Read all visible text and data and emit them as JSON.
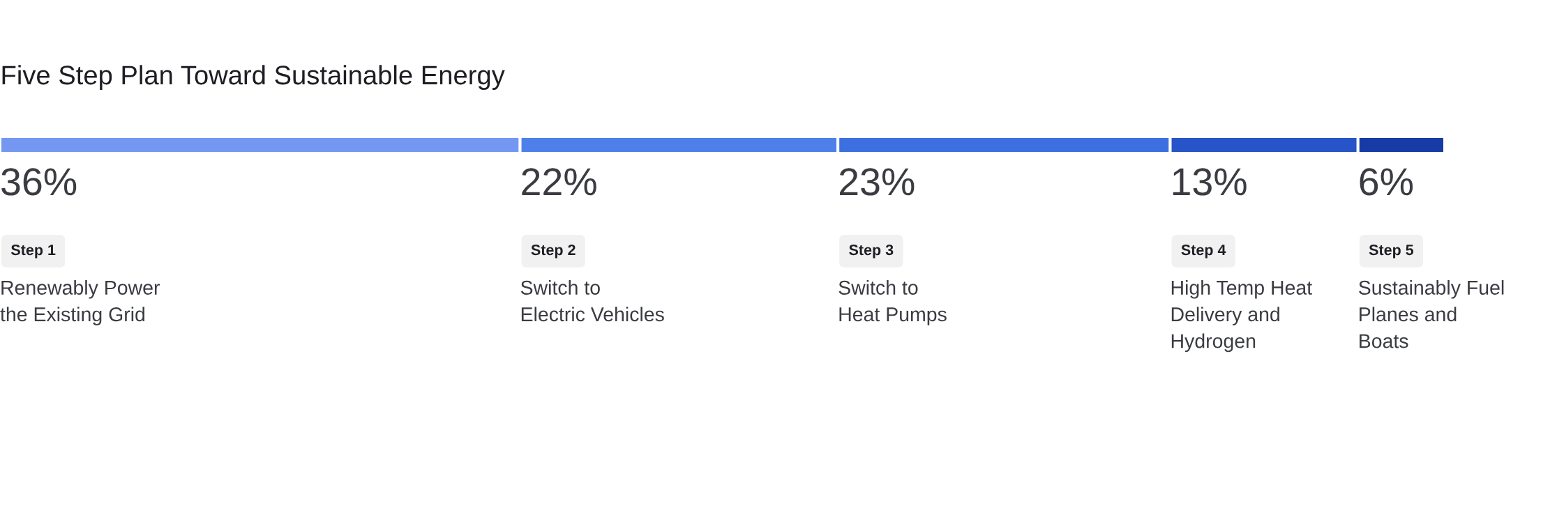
{
  "chart_data": {
    "type": "bar",
    "orientation": "horizontal",
    "stacked": true,
    "title": "Five Step Plan Toward Sustainable Energy",
    "categories": [
      null
    ],
    "series": [
      {
        "color": "#7498f2",
        "values": [
          36
        ],
        "value_labels": [
          "36%"
        ]
      },
      {
        "color": "#4f80ea",
        "values": [
          22
        ],
        "value_labels": [
          "22%"
        ]
      },
      {
        "color": "#3e6fe0",
        "values": [
          23
        ],
        "value_labels": [
          "23%"
        ]
      },
      {
        "color": "#2754c8",
        "values": [
          13
        ],
        "value_labels": [
          "13%"
        ]
      },
      {
        "color": "#173ba5",
        "values": [
          6
        ],
        "value_labels": [
          "6%"
        ]
      }
    ],
    "annotations": [
      "Step 1",
      "Renewably Power\nthe Existing Grid",
      "Step 2",
      "Switch to\nElectric Vehicles",
      "Step 3",
      "Switch to\nHeat Pumps",
      "Step 4",
      "High Temp Heat\nDelivery and\nHydrogen",
      "Step 5",
      "Sustainably Fuel\nPlanes and\nBoats"
    ],
    "xlim": [
      0,
      100
    ],
    "tick_labels": false
  }
}
